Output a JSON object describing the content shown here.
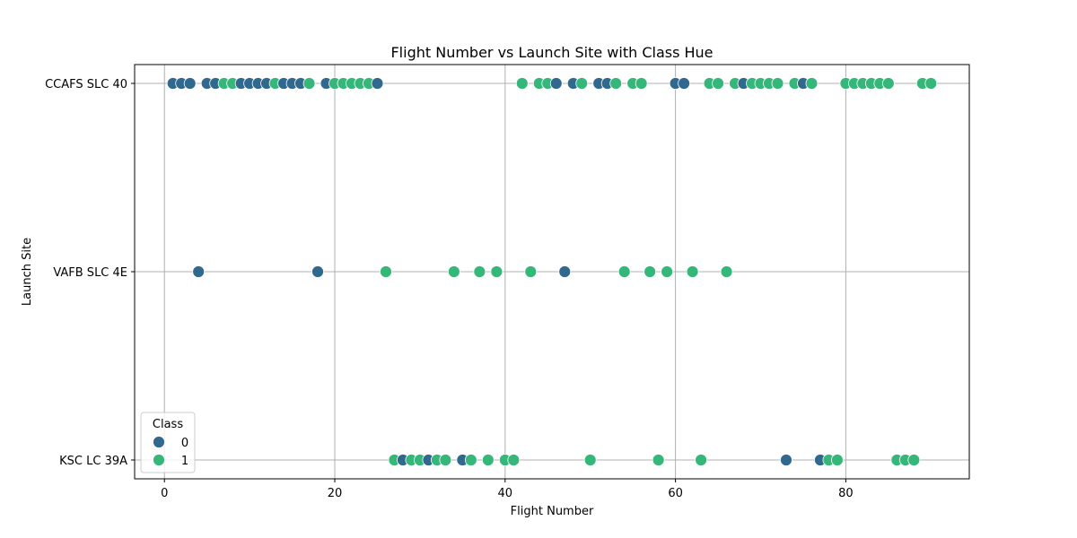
{
  "chart_data": {
    "type": "scatter",
    "title": "Flight Number vs Launch Site with Class Hue",
    "xlabel": "Flight Number",
    "ylabel": "Launch Site",
    "xlim": [
      -3.5,
      94.5
    ],
    "xticks": [
      0,
      20,
      40,
      60,
      80
    ],
    "categories_y": [
      "CCAFS SLC 40",
      "VAFB SLC 4E",
      "KSC LC 39A"
    ],
    "grid": true,
    "legend": {
      "title": "Class",
      "placement": "lower-left",
      "entries": [
        "0",
        "1"
      ]
    },
    "colors": {
      "0": "#31688e",
      "1": "#35b779"
    },
    "series": [
      {
        "name": "0",
        "points": [
          [
            1,
            "CCAFS SLC 40"
          ],
          [
            2,
            "CCAFS SLC 40"
          ],
          [
            3,
            "CCAFS SLC 40"
          ],
          [
            5,
            "CCAFS SLC 40"
          ],
          [
            6,
            "CCAFS SLC 40"
          ],
          [
            9,
            "CCAFS SLC 40"
          ],
          [
            10,
            "CCAFS SLC 40"
          ],
          [
            11,
            "CCAFS SLC 40"
          ],
          [
            12,
            "CCAFS SLC 40"
          ],
          [
            14,
            "CCAFS SLC 40"
          ],
          [
            15,
            "CCAFS SLC 40"
          ],
          [
            16,
            "CCAFS SLC 40"
          ],
          [
            19,
            "CCAFS SLC 40"
          ],
          [
            25,
            "CCAFS SLC 40"
          ],
          [
            46,
            "CCAFS SLC 40"
          ],
          [
            48,
            "CCAFS SLC 40"
          ],
          [
            51,
            "CCAFS SLC 40"
          ],
          [
            52,
            "CCAFS SLC 40"
          ],
          [
            60,
            "CCAFS SLC 40"
          ],
          [
            61,
            "CCAFS SLC 40"
          ],
          [
            68,
            "CCAFS SLC 40"
          ],
          [
            75,
            "CCAFS SLC 40"
          ],
          [
            4,
            "VAFB SLC 4E"
          ],
          [
            18,
            "VAFB SLC 4E"
          ],
          [
            47,
            "VAFB SLC 4E"
          ],
          [
            28,
            "KSC LC 39A"
          ],
          [
            31,
            "KSC LC 39A"
          ],
          [
            35,
            "KSC LC 39A"
          ],
          [
            73,
            "KSC LC 39A"
          ],
          [
            77,
            "KSC LC 39A"
          ]
        ]
      },
      {
        "name": "1",
        "points": [
          [
            7,
            "CCAFS SLC 40"
          ],
          [
            8,
            "CCAFS SLC 40"
          ],
          [
            13,
            "CCAFS SLC 40"
          ],
          [
            17,
            "CCAFS SLC 40"
          ],
          [
            20,
            "CCAFS SLC 40"
          ],
          [
            21,
            "CCAFS SLC 40"
          ],
          [
            22,
            "CCAFS SLC 40"
          ],
          [
            23,
            "CCAFS SLC 40"
          ],
          [
            24,
            "CCAFS SLC 40"
          ],
          [
            42,
            "CCAFS SLC 40"
          ],
          [
            44,
            "CCAFS SLC 40"
          ],
          [
            45,
            "CCAFS SLC 40"
          ],
          [
            49,
            "CCAFS SLC 40"
          ],
          [
            53,
            "CCAFS SLC 40"
          ],
          [
            55,
            "CCAFS SLC 40"
          ],
          [
            56,
            "CCAFS SLC 40"
          ],
          [
            64,
            "CCAFS SLC 40"
          ],
          [
            65,
            "CCAFS SLC 40"
          ],
          [
            67,
            "CCAFS SLC 40"
          ],
          [
            69,
            "CCAFS SLC 40"
          ],
          [
            70,
            "CCAFS SLC 40"
          ],
          [
            71,
            "CCAFS SLC 40"
          ],
          [
            72,
            "CCAFS SLC 40"
          ],
          [
            74,
            "CCAFS SLC 40"
          ],
          [
            76,
            "CCAFS SLC 40"
          ],
          [
            80,
            "CCAFS SLC 40"
          ],
          [
            81,
            "CCAFS SLC 40"
          ],
          [
            82,
            "CCAFS SLC 40"
          ],
          [
            83,
            "CCAFS SLC 40"
          ],
          [
            84,
            "CCAFS SLC 40"
          ],
          [
            85,
            "CCAFS SLC 40"
          ],
          [
            89,
            "CCAFS SLC 40"
          ],
          [
            90,
            "CCAFS SLC 40"
          ],
          [
            26,
            "VAFB SLC 4E"
          ],
          [
            34,
            "VAFB SLC 4E"
          ],
          [
            37,
            "VAFB SLC 4E"
          ],
          [
            39,
            "VAFB SLC 4E"
          ],
          [
            43,
            "VAFB SLC 4E"
          ],
          [
            54,
            "VAFB SLC 4E"
          ],
          [
            57,
            "VAFB SLC 4E"
          ],
          [
            59,
            "VAFB SLC 4E"
          ],
          [
            62,
            "VAFB SLC 4E"
          ],
          [
            66,
            "VAFB SLC 4E"
          ],
          [
            27,
            "KSC LC 39A"
          ],
          [
            29,
            "KSC LC 39A"
          ],
          [
            30,
            "KSC LC 39A"
          ],
          [
            32,
            "KSC LC 39A"
          ],
          [
            33,
            "KSC LC 39A"
          ],
          [
            36,
            "KSC LC 39A"
          ],
          [
            38,
            "KSC LC 39A"
          ],
          [
            40,
            "KSC LC 39A"
          ],
          [
            41,
            "KSC LC 39A"
          ],
          [
            50,
            "KSC LC 39A"
          ],
          [
            58,
            "KSC LC 39A"
          ],
          [
            63,
            "KSC LC 39A"
          ],
          [
            78,
            "KSC LC 39A"
          ],
          [
            79,
            "KSC LC 39A"
          ],
          [
            86,
            "KSC LC 39A"
          ],
          [
            87,
            "KSC LC 39A"
          ],
          [
            88,
            "KSC LC 39A"
          ]
        ]
      }
    ]
  }
}
